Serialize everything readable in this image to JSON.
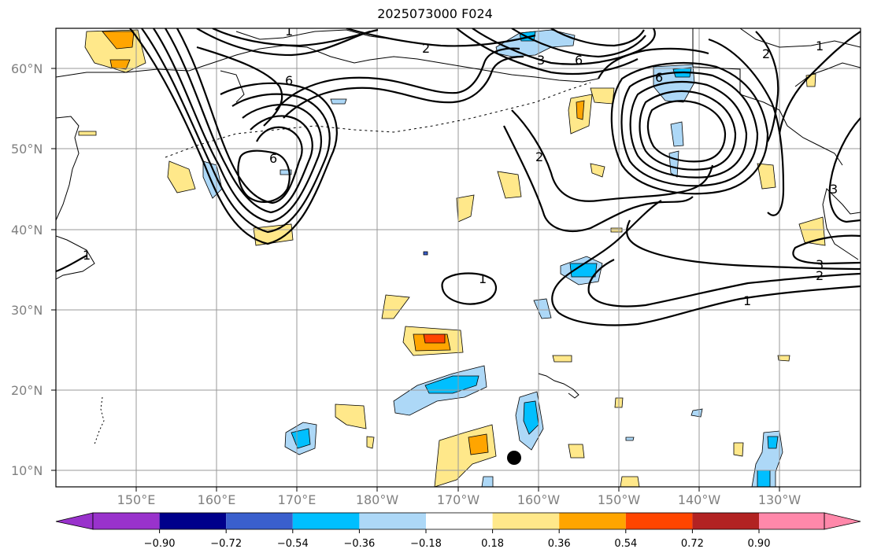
{
  "title": "2025073000 F024",
  "lat_labels": [
    "10°N",
    "20°N",
    "30°N",
    "40°N",
    "50°N",
    "60°N"
  ],
  "lon_labels": [
    "150°E",
    "160°E",
    "170°E",
    "180°W",
    "170°W",
    "160°W",
    "150°W",
    "140°W",
    "130°W"
  ],
  "colorbar": {
    "ticks": [
      "−0.90",
      "−0.72",
      "−0.54",
      "−0.36",
      "−0.18",
      "0.18",
      "0.36",
      "0.54",
      "0.72",
      "0.90"
    ],
    "colors": [
      "#9932cc",
      "#00008b",
      "#3a5fcd",
      "#00bfff",
      "#add8f7",
      "#ffffff",
      "#ffe88a",
      "#ffa500",
      "#ff4500",
      "#b22222",
      "#ff88aa"
    ]
  },
  "contour_labels": [
    "1",
    "2",
    "3",
    "6"
  ],
  "point_marker": {
    "color": "#000000"
  }
}
